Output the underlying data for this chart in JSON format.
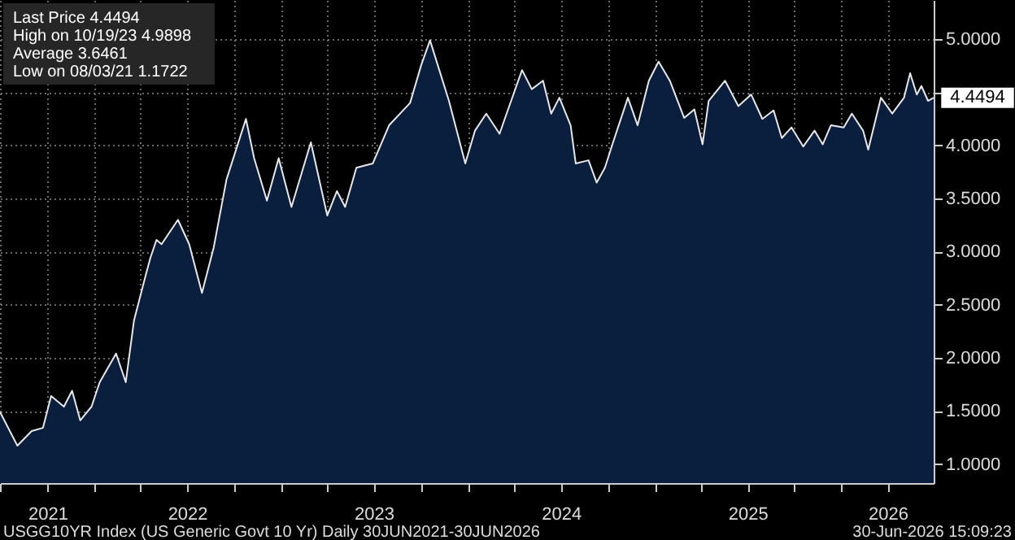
{
  "chart_data": {
    "type": "area",
    "annotations": [
      "Last Price 4.4494",
      "High on 10/19/23 4.9898",
      "Average 3.6461",
      "Low on 08/03/21 1.1722",
      "USGG10YR Index (US Generic Govt 10 Yr) Daily 30JUN2021-30JUN2026",
      "30-Jun-2026 15:09:23",
      {
        "text": "4.4494",
        "x": "2026-06-30",
        "y": 4.4494
      }
    ],
    "xlim": [
      "2021-06-30",
      "2026-06-30"
    ],
    "xticks": [
      {
        "value": "2021-07-01",
        "label": null
      },
      {
        "value": "2021-10-01",
        "label": "2021"
      },
      {
        "value": "2022-01-01",
        "label": null
      },
      {
        "value": "2022-04-01",
        "label": null
      },
      {
        "value": "2022-07-01",
        "label": "2022"
      },
      {
        "value": "2022-10-01",
        "label": null
      },
      {
        "value": "2023-01-01",
        "label": null
      },
      {
        "value": "2023-04-01",
        "label": null
      },
      {
        "value": "2023-07-01",
        "label": "2023"
      },
      {
        "value": "2023-10-01",
        "label": null
      },
      {
        "value": "2024-01-01",
        "label": null
      },
      {
        "value": "2024-04-01",
        "label": null
      },
      {
        "value": "2024-07-01",
        "label": "2024"
      },
      {
        "value": "2024-10-01",
        "label": null
      },
      {
        "value": "2025-01-01",
        "label": null
      },
      {
        "value": "2025-04-01",
        "label": null
      },
      {
        "value": "2025-07-01",
        "label": "2025"
      },
      {
        "value": "2025-10-01",
        "label": null
      },
      {
        "value": "2026-01-01",
        "label": null
      },
      {
        "value": "2026-04-01",
        "label": "2026"
      }
    ],
    "ylim": [
      0.82,
      5.37
    ],
    "yticks": [
      {
        "value": 1,
        "label": "1.0000"
      },
      {
        "value": 1.5,
        "label": "1.5000"
      },
      {
        "value": 2,
        "label": "2.0000"
      },
      {
        "value": 2.5,
        "label": "2.5000"
      },
      {
        "value": 3,
        "label": "3.0000"
      },
      {
        "value": 3.5,
        "label": "3.5000"
      },
      {
        "value": 4,
        "label": "4.0000"
      },
      {
        "value": 4.5,
        "label": null
      },
      {
        "value": 5,
        "label": "5.0000"
      }
    ],
    "grid": true,
    "x": [
      "2021-06-30",
      "2021-08-03",
      "2021-08-31",
      "2021-09-22",
      "2021-10-08",
      "2021-11-02",
      "2021-11-18",
      "2021-12-04",
      "2021-12-26",
      "2022-01-11",
      "2022-02-12",
      "2022-03-03",
      "2022-03-19",
      "2022-04-10",
      "2022-04-20",
      "2022-05-02",
      "2022-05-12",
      "2022-06-13",
      "2022-07-05",
      "2022-07-30",
      "2022-08-22",
      "2022-09-16",
      "2022-10-24",
      "2022-11-09",
      "2022-12-04",
      "2022-12-27",
      "2023-01-21",
      "2023-02-28",
      "2023-04-01",
      "2023-04-20",
      "2023-05-06",
      "2023-05-28",
      "2023-06-29",
      "2023-07-31",
      "2023-09-10",
      "2023-10-02",
      "2023-10-19",
      "2023-11-25",
      "2023-12-27",
      "2024-01-15",
      "2024-02-06",
      "2024-03-03",
      "2024-03-19",
      "2024-04-16",
      "2024-05-05",
      "2024-05-27",
      "2024-06-12",
      "2024-06-28",
      "2024-07-20",
      "2024-07-30",
      "2024-08-24",
      "2024-09-09",
      "2024-09-25",
      "2024-10-11",
      "2024-11-09",
      "2024-11-28",
      "2024-12-20",
      "2025-01-08",
      "2025-01-30",
      "2025-02-27",
      "2025-03-19",
      "2025-04-04",
      "2025-04-16",
      "2025-05-18",
      "2025-06-13",
      "2025-07-08",
      "2025-07-30",
      "2025-08-21",
      "2025-09-06",
      "2025-09-25",
      "2025-10-18",
      "2025-11-09",
      "2025-11-25",
      "2025-12-11",
      "2026-01-05",
      "2026-01-21",
      "2026-02-12",
      "2026-02-22",
      "2026-03-19",
      "2026-04-10",
      "2026-05-03",
      "2026-05-15",
      "2026-05-28",
      "2026-06-06",
      "2026-06-19",
      "2026-06-30"
    ],
    "series": [
      {
        "color": "#0a1f3d",
        "values": [
          1.49,
          1.1722,
          1.31,
          1.34,
          1.64,
          1.54,
          1.69,
          1.41,
          1.54,
          1.77,
          2.04,
          1.77,
          2.35,
          2.76,
          2.94,
          3.11,
          3.07,
          3.3,
          3.07,
          2.61,
          3.04,
          3.68,
          4.25,
          3.88,
          3.48,
          3.88,
          3.42,
          4.03,
          3.34,
          3.57,
          3.42,
          3.79,
          3.83,
          4.19,
          4.4,
          4.76,
          4.9898,
          4.42,
          3.83,
          4.14,
          4.3,
          4.11,
          4.33,
          4.71,
          4.53,
          4.61,
          4.3,
          4.45,
          4.19,
          3.83,
          3.86,
          3.65,
          3.79,
          4.03,
          4.45,
          4.19,
          4.61,
          4.79,
          4.61,
          4.26,
          4.34,
          4.01,
          4.42,
          4.61,
          4.37,
          4.48,
          4.25,
          4.33,
          4.07,
          4.17,
          3.99,
          4.14,
          4.01,
          4.19,
          4.17,
          4.3,
          4.14,
          3.96,
          4.45,
          4.3,
          4.45,
          4.68,
          4.48,
          4.56,
          4.42,
          4.4494
        ]
      }
    ]
  }
}
